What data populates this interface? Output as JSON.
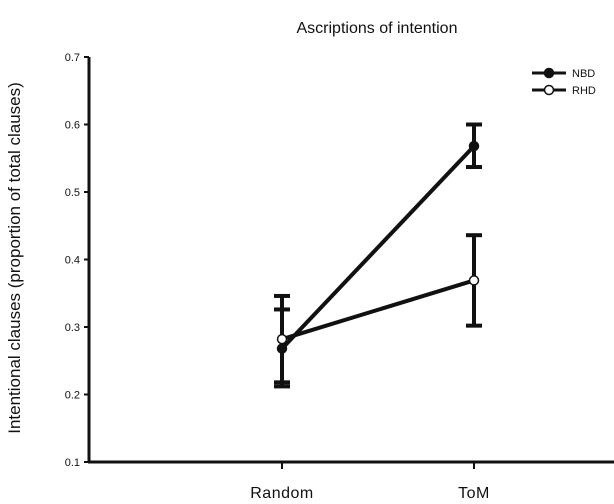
{
  "chart_data": {
    "type": "line",
    "title": "Ascriptions of intention",
    "xlabel": "",
    "ylabel": "Intentional clauses (proportion of total clauses)",
    "categories": [
      "Random",
      "ToM"
    ],
    "ylim": [
      0.1,
      0.7
    ],
    "yticks": [
      "0.1",
      "0.2",
      "0.3",
      "0.4",
      "0.5",
      "0.6",
      "0.7"
    ],
    "legend_position": "top-right",
    "grid": false,
    "series": [
      {
        "name": "NBD",
        "marker": "filled-circle",
        "color": "#111111",
        "values": [
          0.268,
          0.568
        ],
        "err_low": [
          0.212,
          0.537
        ],
        "err_high": [
          0.326,
          0.6
        ]
      },
      {
        "name": "RHD",
        "marker": "open-circle",
        "color": "#111111",
        "values": [
          0.282,
          0.369
        ],
        "err_low": [
          0.218,
          0.302
        ],
        "err_high": [
          0.346,
          0.436
        ]
      }
    ]
  }
}
